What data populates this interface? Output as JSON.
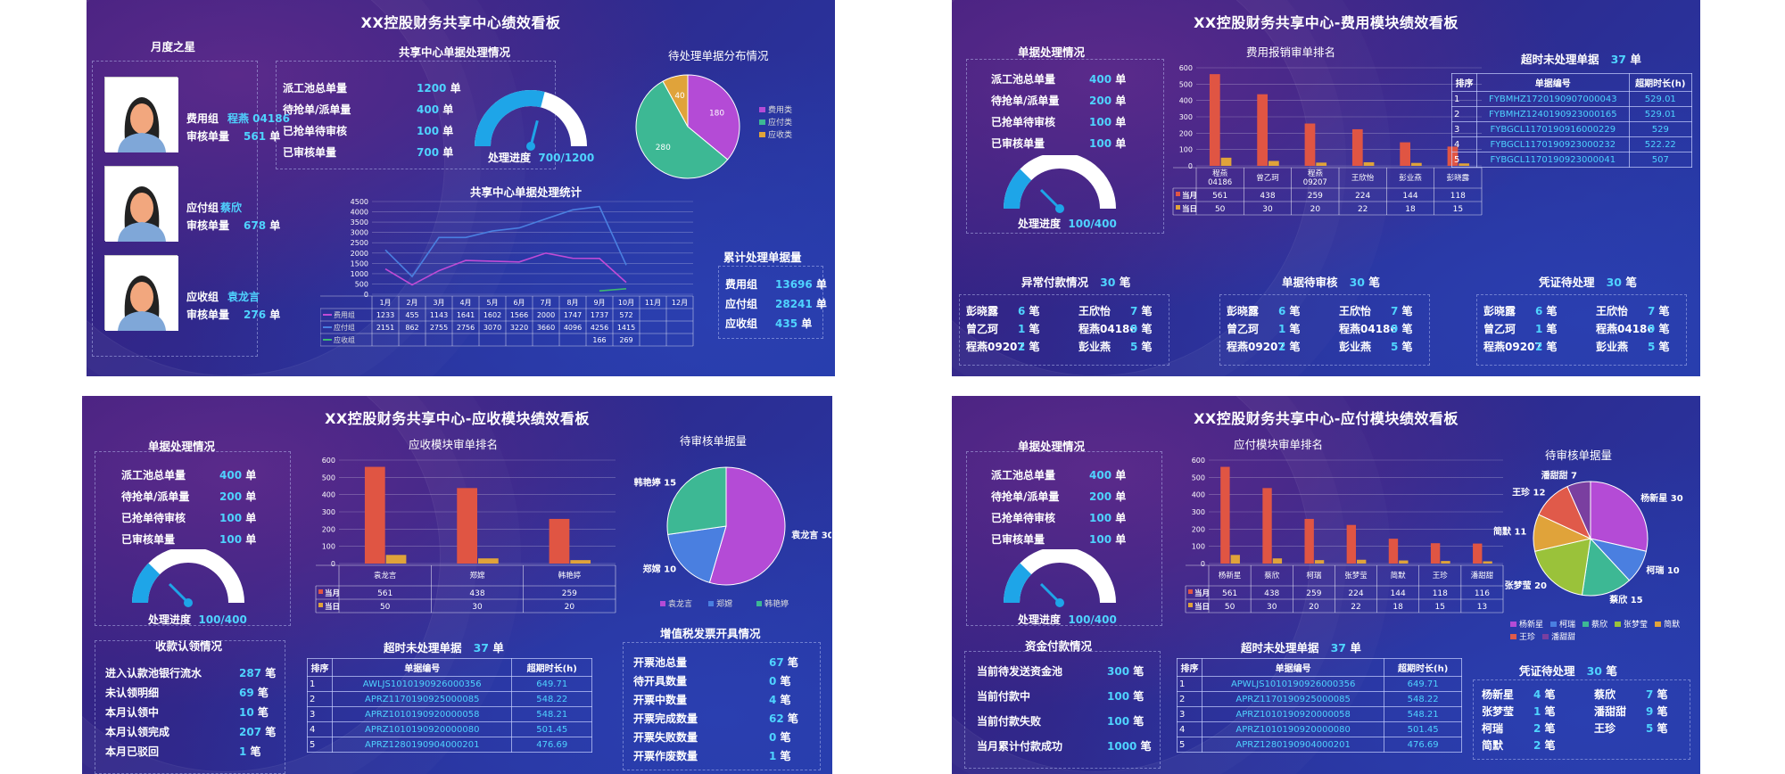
{
  "b1": {
    "title": "XX控股财务共享中心绩效看板",
    "star": {
      "header": "月度之星",
      "items": [
        {
          "group": "费用组",
          "name": "程燕 04186",
          "label": "审核单量",
          "count": "561",
          "unit": "单"
        },
        {
          "group": "应付组",
          "name": "蔡欣",
          "label": "审核单量",
          "count": "678",
          "unit": "单"
        },
        {
          "group": "应收组",
          "name": "袁龙言",
          "label": "审核单量",
          "count": "276",
          "unit": "单"
        }
      ]
    },
    "proc": {
      "header": "共享中心单据处理情况",
      "rows": [
        {
          "label": "派工池总单量",
          "value": "1200",
          "unit": "单"
        },
        {
          "label": "待抢单/派单量",
          "value": "400",
          "unit": "单"
        },
        {
          "label": "已抢单待审核",
          "value": "100",
          "unit": "单"
        },
        {
          "label": "已审核单量",
          "value": "700",
          "unit": "单"
        }
      ],
      "gauge_label": "处理进度",
      "gauge_value": "700/1200",
      "gauge_fraction": 0.58
    },
    "pie": {
      "title": "待处理单据分布情况",
      "slices": [
        {
          "name": "费用类",
          "value": 180,
          "color": "#b44bd6"
        },
        {
          "name": "应付类",
          "value": 280,
          "color": "#3db894"
        },
        {
          "name": "应收类",
          "value": 40,
          "color": "#e0a33a"
        }
      ]
    },
    "stats": {
      "title": "共享中心单据处理统计",
      "yticks": [
        "4500",
        "4000",
        "3500",
        "3000",
        "2500",
        "2000",
        "1500",
        "1000",
        "500",
        "0"
      ],
      "months": [
        "1月",
        "2月",
        "3月",
        "4月",
        "5月",
        "6月",
        "7月",
        "8月",
        "9月",
        "10月",
        "11月",
        "12月"
      ],
      "rows": [
        {
          "name": "费用组",
          "color": "#c04bd6",
          "cells": [
            "1233",
            "455",
            "1143",
            "1641",
            "1602",
            "1566",
            "2000",
            "1747",
            "1737",
            "572",
            "",
            ""
          ]
        },
        {
          "name": "应付组",
          "color": "#4a7fe0",
          "cells": [
            "2151",
            "862",
            "2755",
            "2756",
            "3070",
            "3220",
            "3660",
            "4096",
            "4256",
            "1415",
            "",
            ""
          ]
        },
        {
          "name": "应收组",
          "color": "#3db870",
          "cells": [
            "",
            "",
            "",
            "",
            "",
            "",
            "",
            "",
            "166",
            "269",
            "",
            ""
          ]
        }
      ]
    },
    "total": {
      "header": "累计处理单据量",
      "rows": [
        {
          "label": "费用组",
          "value": "13696",
          "unit": "单"
        },
        {
          "label": "应付组",
          "value": "28241",
          "unit": "单"
        },
        {
          "label": "应收组",
          "value": "435",
          "unit": "单"
        }
      ]
    }
  },
  "b2": {
    "title": "XX控股财务共享中心-费用模块绩效看板",
    "proc": {
      "header": "单据处理情况",
      "rows": [
        {
          "label": "派工池总单量",
          "value": "400",
          "unit": "单"
        },
        {
          "label": "待抢单/派单量",
          "value": "200",
          "unit": "单"
        },
        {
          "label": "已抢单待审核",
          "value": "100",
          "unit": "单"
        },
        {
          "label": "已审核单量",
          "value": "100",
          "unit": "单"
        }
      ],
      "gauge_label": "处理进度",
      "gauge_value": "100/400",
      "gauge_fraction": 0.25
    },
    "rank": {
      "title": "费用报销审单排名",
      "yticks": [
        "600",
        "500",
        "400",
        "300",
        "200",
        "100",
        "0"
      ],
      "names": [
        "程燕 04186",
        "曾乙珂",
        "程燕 09207",
        "王欣怡",
        "彭业燕",
        "彭晓露"
      ],
      "month": [
        561,
        438,
        259,
        224,
        144,
        118
      ],
      "day": [
        50,
        30,
        20,
        22,
        18,
        15
      ],
      "month_label": "当月",
      "day_label": "当日"
    },
    "overdue": {
      "header": "超时未处理单据",
      "count": "37",
      "unit": "单",
      "cols": [
        "排序",
        "单据编号",
        "超期时长(h)"
      ],
      "rows": [
        [
          "1",
          "FYBMHZ1720190907000043",
          "529.01"
        ],
        [
          "2",
          "FYBMHZ1240190923000165",
          "529.01"
        ],
        [
          "3",
          "FYBGCL1170190916000229",
          "529"
        ],
        [
          "4",
          "FYBGCL1170190923000232",
          "522.22"
        ],
        [
          "5",
          "FYBGCL1170190923000041",
          "507"
        ]
      ]
    },
    "cards": [
      {
        "header": "异常付款情况",
        "count": "30",
        "unit": "笔",
        "items": [
          [
            "彭晓露",
            "6",
            "笔"
          ],
          [
            "王欣怡",
            "7",
            "笔"
          ],
          [
            "曾乙珂",
            "1",
            "笔"
          ],
          [
            "程燕04186",
            "9",
            "笔"
          ],
          [
            "程燕09207",
            "2",
            "笔"
          ],
          [
            "彭业燕",
            "5",
            "笔"
          ]
        ]
      },
      {
        "header": "单据待审核",
        "count": "30",
        "unit": "笔",
        "items": [
          [
            "彭晓露",
            "6",
            "笔"
          ],
          [
            "王欣怡",
            "7",
            "笔"
          ],
          [
            "曾乙珂",
            "1",
            "笔"
          ],
          [
            "程燕04186",
            "9",
            "笔"
          ],
          [
            "程燕09207",
            "2",
            "笔"
          ],
          [
            "彭业燕",
            "5",
            "笔"
          ]
        ]
      },
      {
        "header": "凭证待处理",
        "count": "30",
        "unit": "笔",
        "items": [
          [
            "彭晓露",
            "6",
            "笔"
          ],
          [
            "王欣怡",
            "7",
            "笔"
          ],
          [
            "曾乙珂",
            "1",
            "笔"
          ],
          [
            "程燕04186",
            "9",
            "笔"
          ],
          [
            "程燕09207",
            "2",
            "笔"
          ],
          [
            "彭业燕",
            "5",
            "笔"
          ]
        ]
      }
    ]
  },
  "b3": {
    "title": "XX控股财务共享中心-应收模块绩效看板",
    "proc": {
      "header": "单据处理情况",
      "rows": [
        {
          "label": "派工池总单量",
          "value": "400",
          "unit": "单"
        },
        {
          "label": "待抢单/派单量",
          "value": "200",
          "unit": "单"
        },
        {
          "label": "已抢单待审核",
          "value": "100",
          "unit": "单"
        },
        {
          "label": "已审核单量",
          "value": "100",
          "unit": "单"
        }
      ],
      "gauge_label": "处理进度",
      "gauge_value": "100/400",
      "gauge_fraction": 0.25
    },
    "rank": {
      "title": "应收模块审单排名",
      "yticks": [
        "600",
        "500",
        "400",
        "300",
        "200",
        "100",
        "0"
      ],
      "names": [
        "袁龙言",
        "郑嫦",
        "韩艳婷"
      ],
      "month": [
        561,
        438,
        259
      ],
      "day": [
        50,
        30,
        20
      ],
      "month_label": "当月",
      "day_label": "当日"
    },
    "pie": {
      "title": "待审核单据量",
      "slices": [
        {
          "name": "袁龙言",
          "value": 30,
          "color": "#b44bd6",
          "label": "袁龙言 30"
        },
        {
          "name": "郑嫦",
          "value": 10,
          "color": "#4a7fe0",
          "label": "郑嫦 10"
        },
        {
          "name": "韩艳婷",
          "value": 15,
          "color": "#3db894",
          "label": "韩艳婷 15"
        }
      ]
    },
    "claim": {
      "header": "收款认领情况",
      "rows": [
        {
          "label": "进入认款池银行流水",
          "value": "287",
          "unit": "笔"
        },
        {
          "label": "未认领明细",
          "value": "69",
          "unit": "笔"
        },
        {
          "label": "本月认领中",
          "value": "10",
          "unit": "笔"
        },
        {
          "label": "本月认领完成",
          "value": "207",
          "unit": "笔"
        },
        {
          "label": "本月已驳回",
          "value": "1",
          "unit": "笔"
        }
      ]
    },
    "overdue": {
      "header": "超时未处理单据",
      "count": "37",
      "unit": "单",
      "cols": [
        "排序",
        "单据编号",
        "超期时长(h)"
      ],
      "rows": [
        [
          "1",
          "AWLJS1010190926000356",
          "649.71"
        ],
        [
          "2",
          "APRZ1170190925000085",
          "548.22"
        ],
        [
          "3",
          "APRZ1010190920000058",
          "548.21"
        ],
        [
          "4",
          "APRZ1010190920000080",
          "501.45"
        ],
        [
          "5",
          "APRZ1280190904000201",
          "476.69"
        ]
      ]
    },
    "vat": {
      "header": "增值税发票开具情况",
      "rows": [
        {
          "label": "开票池总量",
          "value": "67",
          "unit": "笔"
        },
        {
          "label": "待开具数量",
          "value": "0",
          "unit": "笔"
        },
        {
          "label": "开票中数量",
          "value": "4",
          "unit": "笔"
        },
        {
          "label": "开票完成数量",
          "value": "62",
          "unit": "笔"
        },
        {
          "label": "开票失败数量",
          "value": "0",
          "unit": "笔"
        },
        {
          "label": "开票作废数量",
          "value": "1",
          "unit": "笔"
        }
      ]
    }
  },
  "b4": {
    "title": "XX控股财务共享中心-应付模块绩效看板",
    "proc": {
      "header": "单据处理情况",
      "rows": [
        {
          "label": "派工池总单量",
          "value": "400",
          "unit": "单"
        },
        {
          "label": "待抢单/派单量",
          "value": "200",
          "unit": "单"
        },
        {
          "label": "已抢单待审核",
          "value": "100",
          "unit": "单"
        },
        {
          "label": "已审核单量",
          "value": "100",
          "unit": "单"
        }
      ],
      "gauge_label": "处理进度",
      "gauge_value": "100/400",
      "gauge_fraction": 0.25
    },
    "rank": {
      "title": "应付模块审单排名",
      "yticks": [
        "600",
        "500",
        "400",
        "300",
        "200",
        "100",
        "0"
      ],
      "names": [
        "杨新星",
        "蔡欣",
        "柯瑞",
        "张梦莹",
        "简默",
        "王珍",
        "潘甜甜"
      ],
      "month": [
        561,
        438,
        259,
        224,
        144,
        118,
        116
      ],
      "day": [
        50,
        30,
        20,
        22,
        18,
        15,
        13
      ],
      "month_label": "当月",
      "day_label": "当日"
    },
    "pie": {
      "title": "待审核单据量",
      "slices": [
        {
          "name": "杨新星",
          "value": 30,
          "color": "#b44bd6",
          "label": "杨新星 30"
        },
        {
          "name": "柯瑞",
          "value": 10,
          "color": "#4a7fe0",
          "label": "柯瑞 10"
        },
        {
          "name": "蔡欣",
          "value": 15,
          "color": "#3db894",
          "label": "蔡欣 15"
        },
        {
          "name": "张梦莹",
          "value": 20,
          "color": "#9ac23a",
          "label": "张梦莹 20"
        },
        {
          "name": "简默",
          "value": 11,
          "color": "#e0a33a",
          "label": "简默 11"
        },
        {
          "name": "王珍",
          "value": 12,
          "color": "#e05a4a",
          "label": "王珍 12"
        },
        {
          "name": "潘甜甜",
          "value": 7,
          "color": "#7a3fa0",
          "label": "潘甜甜 7"
        }
      ]
    },
    "pay": {
      "header": "资金付款情况",
      "rows": [
        {
          "label": "当前待发送资金池",
          "value": "300",
          "unit": "笔"
        },
        {
          "label": "当前付款中",
          "value": "100",
          "unit": "笔"
        },
        {
          "label": "当前付款失败",
          "value": "100",
          "unit": "笔"
        },
        {
          "label": "当月累计付款成功",
          "value": "1000",
          "unit": "笔"
        }
      ]
    },
    "overdue": {
      "header": "超时未处理单据",
      "count": "37",
      "unit": "单",
      "cols": [
        "排序",
        "单据编号",
        "超期时长(h)"
      ],
      "rows": [
        [
          "1",
          "APWLJS1010190926000356",
          "649.71"
        ],
        [
          "2",
          "APRZ1170190925000085",
          "548.22"
        ],
        [
          "3",
          "APRZ1010190920000058",
          "548.21"
        ],
        [
          "4",
          "APRZ1010190920000080",
          "501.45"
        ],
        [
          "5",
          "APRZ1280190904000201",
          "476.69"
        ]
      ]
    },
    "voucher": {
      "header": "凭证待处理",
      "count": "30",
      "unit": "笔",
      "items": [
        [
          "杨新星",
          "4",
          "笔"
        ],
        [
          "蔡欣",
          "7",
          "笔"
        ],
        [
          "张梦莹",
          "1",
          "笔"
        ],
        [
          "潘甜甜",
          "9",
          "笔"
        ],
        [
          "柯瑞",
          "2",
          "笔"
        ],
        [
          "王珍",
          "5",
          "笔"
        ],
        [
          "简默",
          "2",
          "笔"
        ]
      ]
    }
  },
  "chart_data": [
    {
      "type": "line",
      "title": "共享中心单据处理统计",
      "categories": [
        "1月",
        "2月",
        "3月",
        "4月",
        "5月",
        "6月",
        "7月",
        "8月",
        "9月",
        "10月",
        "11月",
        "12月"
      ],
      "ylim": [
        0,
        4500
      ],
      "series": [
        {
          "name": "费用组",
          "values": [
            1233,
            455,
            1143,
            1641,
            1602,
            1566,
            2000,
            1747,
            1737,
            572,
            null,
            null
          ]
        },
        {
          "name": "应付组",
          "values": [
            2151,
            862,
            2755,
            2756,
            3070,
            3220,
            3660,
            4096,
            4256,
            1415,
            null,
            null
          ]
        },
        {
          "name": "应收组",
          "values": [
            null,
            null,
            null,
            null,
            null,
            null,
            null,
            null,
            166,
            269,
            null,
            null
          ]
        }
      ]
    },
    {
      "type": "pie",
      "title": "待处理单据分布情况",
      "categories": [
        "费用类",
        "应付类",
        "应收类"
      ],
      "values": [
        180,
        280,
        40
      ]
    },
    {
      "type": "bar",
      "title": "费用报销审单排名",
      "categories": [
        "程燕 04186",
        "曾乙珂",
        "程燕 09207",
        "王欣怡",
        "彭业燕",
        "彭晓露"
      ],
      "ylim": [
        0,
        600
      ],
      "series": [
        {
          "name": "当月",
          "values": [
            561,
            438,
            259,
            224,
            144,
            118
          ]
        },
        {
          "name": "当日",
          "values": [
            50,
            30,
            20,
            22,
            18,
            15
          ]
        }
      ]
    },
    {
      "type": "bar",
      "title": "应收模块审单排名",
      "categories": [
        "袁龙言",
        "郑嫦",
        "韩艳婷"
      ],
      "ylim": [
        0,
        600
      ],
      "series": [
        {
          "name": "当月",
          "values": [
            561,
            438,
            259
          ]
        },
        {
          "name": "当日",
          "values": [
            50,
            30,
            20
          ]
        }
      ]
    },
    {
      "type": "pie",
      "title": "待审核单据量",
      "categories": [
        "袁龙言",
        "郑嫦",
        "韩艳婷"
      ],
      "values": [
        30,
        10,
        15
      ]
    },
    {
      "type": "bar",
      "title": "应付模块审单排名",
      "categories": [
        "杨新星",
        "蔡欣",
        "柯瑞",
        "张梦莹",
        "简默",
        "王珍",
        "潘甜甜"
      ],
      "ylim": [
        0,
        600
      ],
      "series": [
        {
          "name": "当月",
          "values": [
            561,
            438,
            259,
            224,
            144,
            118,
            116
          ]
        },
        {
          "name": "当日",
          "values": [
            50,
            30,
            20,
            22,
            18,
            15,
            13
          ]
        }
      ]
    },
    {
      "type": "pie",
      "title": "待审核单据量",
      "categories": [
        "杨新星",
        "柯瑞",
        "蔡欣",
        "张梦莹",
        "简默",
        "王珍",
        "潘甜甜"
      ],
      "values": [
        30,
        10,
        15,
        20,
        11,
        12,
        7
      ]
    }
  ]
}
